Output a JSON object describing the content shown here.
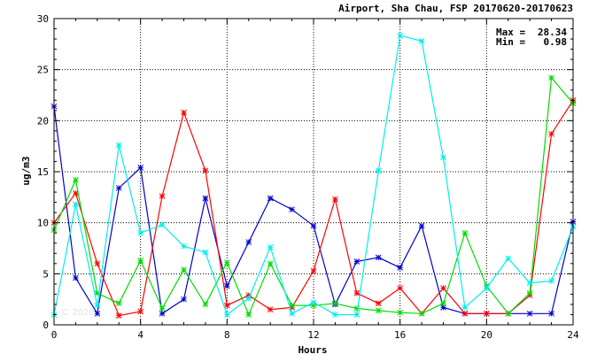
{
  "chart_data": {
    "type": "line",
    "title": "Airport, Sha Chau, FSP 20170620-20170623",
    "xlabel": "Hours",
    "ylabel": "ug/m3",
    "xlim": [
      0,
      24
    ],
    "ylim": [
      0,
      30
    ],
    "xticks": [
      0,
      4,
      8,
      12,
      16,
      20,
      24
    ],
    "yticks": [
      0,
      5,
      10,
      15,
      20,
      25,
      30
    ],
    "grid": "dotted, major ticks",
    "stats": {
      "max_label": "Max =",
      "max_value": "28.34",
      "min_label": "Min =",
      "min_value": "0.98"
    },
    "watermark": "© 2020 ...",
    "series": [
      {
        "color": "#0000cc",
        "x": [
          0,
          1,
          2,
          3,
          4,
          5,
          6,
          7,
          8,
          9,
          10,
          11,
          12,
          13,
          14,
          15,
          16,
          17,
          18,
          19,
          20,
          21,
          22,
          23,
          24
        ],
        "values": [
          21.4,
          4.6,
          1.1,
          13.4,
          15.4,
          1.1,
          2.5,
          12.4,
          3.8,
          8.1,
          12.4,
          11.3,
          9.7,
          2.0,
          6.2,
          6.6,
          5.6,
          9.7,
          1.7,
          1.1,
          1.1,
          1.1,
          1.1,
          1.1,
          10.1
        ]
      },
      {
        "color": "#ff0000",
        "x": [
          0,
          1,
          2,
          3,
          4,
          5,
          6,
          7,
          8,
          9,
          10,
          11,
          12,
          13,
          14,
          15,
          16,
          17,
          18,
          19,
          20,
          21,
          22,
          23,
          24
        ],
        "values": [
          10.0,
          12.9,
          6.0,
          0.9,
          1.3,
          12.6,
          20.8,
          15.1,
          1.9,
          2.9,
          1.5,
          1.7,
          5.3,
          12.3,
          3.1,
          2.1,
          3.6,
          1.1,
          3.6,
          1.1,
          1.1,
          1.1,
          2.9,
          18.7,
          22.0
        ]
      },
      {
        "color": "#00dd00",
        "x": [
          0,
          1,
          2,
          3,
          4,
          5,
          6,
          7,
          8,
          9,
          10,
          11,
          12,
          13,
          14,
          15,
          16,
          17,
          18,
          19,
          20,
          21,
          22,
          23,
          24
        ],
        "values": [
          9.3,
          14.2,
          3.1,
          2.1,
          6.3,
          1.6,
          5.4,
          2.0,
          6.1,
          1.0,
          6.0,
          1.9,
          1.9,
          2.1,
          1.6,
          1.4,
          1.2,
          1.1,
          2.1,
          9.0,
          3.8,
          1.1,
          3.1,
          24.2,
          21.7
        ]
      },
      {
        "color": "#00eeee",
        "x": [
          0,
          1,
          2,
          3,
          4,
          5,
          6,
          7,
          8,
          9,
          10,
          11,
          12,
          13,
          14,
          15,
          16,
          17,
          18,
          19,
          20,
          21,
          22,
          23,
          24
        ],
        "values": [
          0.98,
          11.8,
          1.9,
          17.6,
          9.0,
          9.8,
          7.7,
          7.1,
          1.0,
          2.6,
          7.6,
          1.1,
          2.2,
          1.0,
          1.0,
          15.1,
          28.34,
          27.8,
          16.4,
          1.7,
          3.6,
          6.5,
          4.1,
          4.3,
          9.6
        ]
      }
    ]
  }
}
